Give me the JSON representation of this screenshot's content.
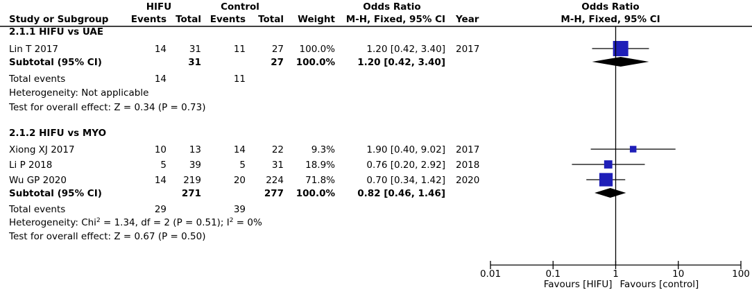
{
  "chart_data": {
    "type": "forest",
    "header": {
      "col_study": "Study or Subgroup",
      "group1": "HIFU",
      "group2": "Control",
      "events": "Events",
      "total": "Total",
      "weight": "Weight",
      "or_title": "Odds Ratio",
      "or_method": "M-H, Fixed, 95% CI",
      "year": "Year",
      "plot_title": "Odds Ratio",
      "plot_method": "M-H, Fixed, 95% CI"
    },
    "subgroups": [
      {
        "title": "2.1.1 HIFU vs UAE",
        "studies": [
          {
            "name": "Lin T 2017",
            "e1": "14",
            "n1": "31",
            "e2": "11",
            "n2": "27",
            "weight": "100.0%",
            "ci_text": "1.20 [0.42, 3.40]",
            "year": "2017",
            "or": 1.2,
            "lo": 0.42,
            "hi": 3.4,
            "w": 100.0
          }
        ],
        "subtotal": {
          "label": "Subtotal (95% CI)",
          "n1": "31",
          "n2": "27",
          "weight": "100.0%",
          "ci_text": "1.20 [0.42, 3.40]",
          "or": 1.2,
          "lo": 0.42,
          "hi": 3.4
        },
        "total_events": {
          "label": "Total events",
          "e1": "14",
          "e2": "11"
        },
        "heterogeneity": "Heterogeneity: Not applicable",
        "overall": "Test for overall effect: Z = 0.34 (P = 0.73)"
      },
      {
        "title": "2.1.2 HIFU vs MYO",
        "studies": [
          {
            "name": "Xiong XJ 2017",
            "e1": "10",
            "n1": "13",
            "e2": "14",
            "n2": "22",
            "weight": "9.3%",
            "ci_text": "1.90 [0.40, 9.02]",
            "year": "2017",
            "or": 1.9,
            "lo": 0.4,
            "hi": 9.02,
            "w": 9.3
          },
          {
            "name": "Li P 2018",
            "e1": "5",
            "n1": "39",
            "e2": "5",
            "n2": "31",
            "weight": "18.9%",
            "ci_text": "0.76 [0.20, 2.92]",
            "year": "2018",
            "or": 0.76,
            "lo": 0.2,
            "hi": 2.92,
            "w": 18.9
          },
          {
            "name": "Wu GP 2020",
            "e1": "14",
            "n1": "219",
            "e2": "20",
            "n2": "224",
            "weight": "71.8%",
            "ci_text": "0.70 [0.34, 1.42]",
            "year": "2020",
            "or": 0.7,
            "lo": 0.34,
            "hi": 1.42,
            "w": 71.8
          }
        ],
        "subtotal": {
          "label": "Subtotal (95% CI)",
          "n1": "271",
          "n2": "277",
          "weight": "100.0%",
          "ci_text": "0.82 [0.46, 1.46]",
          "or": 0.82,
          "lo": 0.46,
          "hi": 1.46
        },
        "total_events": {
          "label": "Total events",
          "e1": "29",
          "e2": "39"
        },
        "heterogeneity_parts": [
          "Heterogeneity: Chi",
          "2",
          " = 1.34, df = 2 (P = 0.51); I",
          "2",
          " = 0%"
        ],
        "overall": "Test for overall effect: Z = 0.67 (P = 0.50)"
      }
    ],
    "axis": {
      "scale": "log",
      "range": [
        0.01,
        100
      ],
      "ticks": [
        0.01,
        0.1,
        1,
        10,
        100
      ],
      "tick_labels": [
        "0.01",
        "0.1",
        "1",
        "10",
        "100"
      ],
      "favours_left": "Favours [HIFU]",
      "favours_right": "Favours [control]"
    },
    "colors": {
      "study_marker": "#1f1fb8",
      "diamond": "#000000",
      "lines": "#000000"
    }
  }
}
